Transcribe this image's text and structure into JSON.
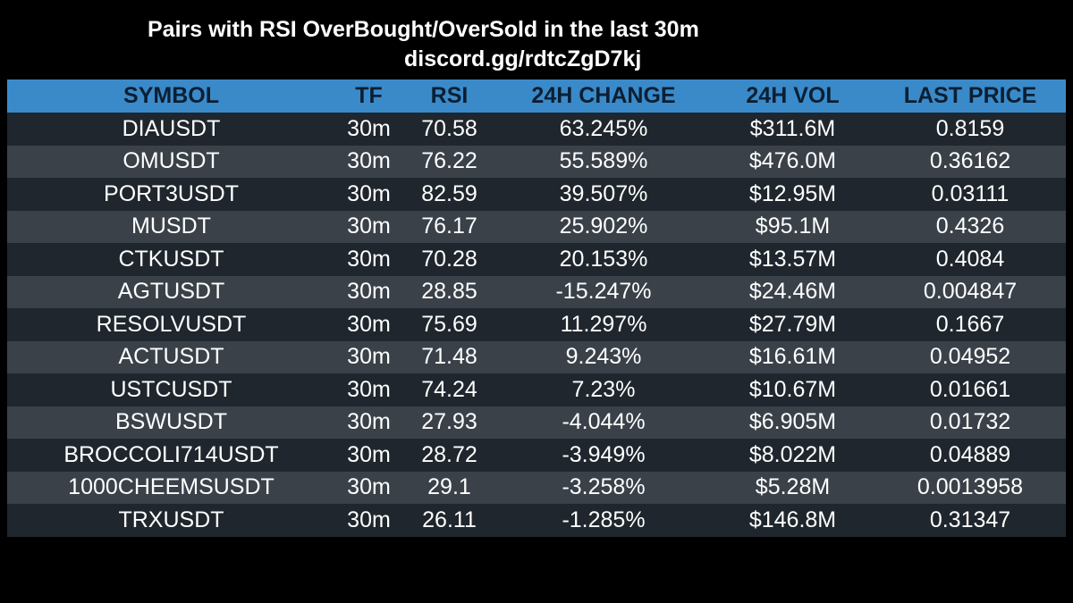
{
  "header": {
    "title": "Pairs with RSI OverBought/OverSold in the last 30m",
    "subtitle": "discord.gg/rdtcZgD7kj"
  },
  "table": {
    "columns": {
      "symbol": "SYMBOL",
      "tf": "TF",
      "rsi": "RSI",
      "change": "24H CHANGE",
      "vol": "24H VOL",
      "price": "LAST PRICE"
    },
    "rows": [
      {
        "symbol": "DIAUSDT",
        "tf": "30m",
        "rsi": "70.58",
        "change": "63.245%",
        "vol": "$311.6M",
        "price": "0.8159"
      },
      {
        "symbol": "OMUSDT",
        "tf": "30m",
        "rsi": "76.22",
        "change": "55.589%",
        "vol": "$476.0M",
        "price": "0.36162"
      },
      {
        "symbol": "PORT3USDT",
        "tf": "30m",
        "rsi": "82.59",
        "change": "39.507%",
        "vol": "$12.95M",
        "price": "0.03111"
      },
      {
        "symbol": "MUSDT",
        "tf": "30m",
        "rsi": "76.17",
        "change": "25.902%",
        "vol": "$95.1M",
        "price": "0.4326"
      },
      {
        "symbol": "CTKUSDT",
        "tf": "30m",
        "rsi": "70.28",
        "change": "20.153%",
        "vol": "$13.57M",
        "price": "0.4084"
      },
      {
        "symbol": "AGTUSDT",
        "tf": "30m",
        "rsi": "28.85",
        "change": "-15.247%",
        "vol": "$24.46M",
        "price": "0.004847"
      },
      {
        "symbol": "RESOLVUSDT",
        "tf": "30m",
        "rsi": "75.69",
        "change": "11.297%",
        "vol": "$27.79M",
        "price": "0.1667"
      },
      {
        "symbol": "ACTUSDT",
        "tf": "30m",
        "rsi": "71.48",
        "change": "9.243%",
        "vol": "$16.61M",
        "price": "0.04952"
      },
      {
        "symbol": "USTCUSDT",
        "tf": "30m",
        "rsi": "74.24",
        "change": "7.23%",
        "vol": "$10.67M",
        "price": "0.01661"
      },
      {
        "symbol": "BSWUSDT",
        "tf": "30m",
        "rsi": "27.93",
        "change": "-4.044%",
        "vol": "$6.905M",
        "price": "0.01732"
      },
      {
        "symbol": "BROCCOLI714USDT",
        "tf": "30m",
        "rsi": "28.72",
        "change": "-3.949%",
        "vol": "$8.022M",
        "price": "0.04889"
      },
      {
        "symbol": "1000CHEEMSUSDT",
        "tf": "30m",
        "rsi": "29.1",
        "change": "-3.258%",
        "vol": "$5.28M",
        "price": "0.0013958"
      },
      {
        "symbol": "TRXUSDT",
        "tf": "30m",
        "rsi": "26.11",
        "change": "-1.285%",
        "vol": "$146.8M",
        "price": "0.31347"
      }
    ]
  },
  "colors": {
    "background": "#000000",
    "header_bg": "#3a8ac9",
    "header_text": "#0b1f33",
    "row_dark": "#1f262d",
    "row_light": "#3a4149",
    "text": "#ffffff"
  }
}
